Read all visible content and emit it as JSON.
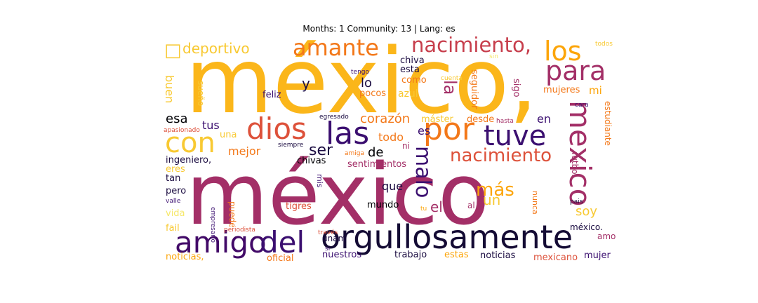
{
  "chart_data": {
    "type": "wordcloud",
    "title": "Months: 1 Community: 13 | Lang: es",
    "colormap": [
      "#000004",
      "#3b0f70",
      "#8c2981",
      "#a32f67",
      "#dd513a",
      "#f37819",
      "#fca50a",
      "#f8c932",
      "#f6e86a"
    ],
    "words": [
      {
        "text": "méxico,",
        "color": "#fbb61a"
      },
      {
        "text": "méxico",
        "color": "#a32f67"
      },
      {
        "text": "orgullosamente",
        "color": "#140b34"
      },
      {
        "text": "amigo",
        "color": "#420a68"
      },
      {
        "text": "del",
        "color": "#3b0f70"
      },
      {
        "text": "por",
        "color": "#f37819"
      },
      {
        "text": "tuve",
        "color": "#3b0f70"
      },
      {
        "text": "las",
        "color": "#3b0f70"
      },
      {
        "text": "dios",
        "color": "#dd513a"
      },
      {
        "text": "con",
        "color": "#f8c932"
      },
      {
        "text": "para",
        "color": "#a32f67"
      },
      {
        "text": "los",
        "color": "#fca50a"
      },
      {
        "text": "amante",
        "color": "#f37819"
      },
      {
        "text": "nacimiento,",
        "color": "#c73e4c"
      },
      {
        "text": "nacimiento",
        "color": "#dd513a"
      },
      {
        "text": "mexico",
        "color": "#a32f67"
      },
      {
        "text": "malo",
        "color": "#3b0f70"
      },
      {
        "text": "deportivo",
        "color": "#f8c932"
      },
      {
        "text": "más",
        "color": "#fca50a"
      },
      {
        "text": "un",
        "color": "#f8c932"
      },
      {
        "text": "el",
        "color": "#a32f67"
      },
      {
        "text": "corazón",
        "color": "#f37819"
      },
      {
        "text": "ser",
        "color": "#1b0c41"
      },
      {
        "text": "de",
        "color": "#000004"
      },
      {
        "text": "lo",
        "color": "#1b0c41"
      },
      {
        "text": "y",
        "color": "#1b0c41"
      },
      {
        "text": "mejor",
        "color": "#f37819"
      },
      {
        "text": "todo",
        "color": "#f37819"
      },
      {
        "text": "tus",
        "color": "#3b0f70"
      },
      {
        "text": "esa",
        "color": "#000004"
      },
      {
        "text": "que",
        "color": "#1b0c41"
      },
      {
        "text": "es",
        "color": "#3b0f70"
      },
      {
        "text": "en",
        "color": "#3b0f70"
      },
      {
        "text": "la",
        "color": "#a32f67"
      },
      {
        "text": "soy",
        "color": "#f8c932"
      },
      {
        "text": "buen",
        "color": "#f8c932"
      },
      {
        "text": "sueño",
        "color": "#f8c932"
      },
      {
        "text": "chiva",
        "color": "#1b0c41"
      },
      {
        "text": "esta",
        "color": "#1b0c41"
      },
      {
        "text": "como",
        "color": "#f37819"
      },
      {
        "text": "pocos",
        "color": "#f37819"
      },
      {
        "text": "azul",
        "color": "#f8c932"
      },
      {
        "text": "feliz",
        "color": "#3b0f70"
      },
      {
        "text": "seguidor",
        "color": "#f37819"
      },
      {
        "text": "sigo",
        "color": "#a32f67"
      },
      {
        "text": "mujeres",
        "color": "#f37819"
      },
      {
        "text": "mi",
        "color": "#fca50a"
      },
      {
        "text": "estudiante",
        "color": "#f37819"
      },
      {
        "text": "futbol,",
        "color": "#a32f67"
      },
      {
        "text": "máster",
        "color": "#f8c932"
      },
      {
        "text": "desde",
        "color": "#f37819"
      },
      {
        "text": "una",
        "color": "#f8c932"
      },
      {
        "text": "ingeniero,",
        "color": "#1b0c41"
      },
      {
        "text": "eres",
        "color": "#f8c932"
      },
      {
        "text": "tan",
        "color": "#1b0c41"
      },
      {
        "text": "pero",
        "color": "#1b0c41"
      },
      {
        "text": "vida",
        "color": "#f6e86a"
      },
      {
        "text": "fail",
        "color": "#f8c932"
      },
      {
        "text": "chivas",
        "color": "#000004"
      },
      {
        "text": "sentimientos",
        "color": "#a32f67"
      },
      {
        "text": "tigres",
        "color": "#dd513a"
      },
      {
        "text": "mundo",
        "color": "#000004"
      },
      {
        "text": "puede",
        "color": "#f37819"
      },
      {
        "text": "unam",
        "color": "#1b0c41"
      },
      {
        "text": "nuestros",
        "color": "#3b0f70"
      },
      {
        "text": "trabajo",
        "color": "#1b0c41"
      },
      {
        "text": "estas",
        "color": "#fca50a"
      },
      {
        "text": "noticias",
        "color": "#1b0c41"
      },
      {
        "text": "noticias,",
        "color": "#fca50a"
      },
      {
        "text": "oficial",
        "color": "#f37819"
      },
      {
        "text": "mexicano",
        "color": "#dd513a"
      },
      {
        "text": "mujer",
        "color": "#3b0f70"
      },
      {
        "text": "méxico.",
        "color": "#1b0c41"
      },
      {
        "text": "amo",
        "color": "#a32f67"
      },
      {
        "text": "nunca",
        "color": "#f37819"
      },
      {
        "text": "al",
        "color": "#a32f67"
      },
      {
        "text": "mis",
        "color": "#3b0f70"
      },
      {
        "text": "ni",
        "color": "#a32f67"
      },
      {
        "text": "tengo",
        "color": "#3b0f70"
      },
      {
        "text": "si",
        "color": "#3b0f70"
      },
      {
        "text": "egresado",
        "color": "#1b0c41"
      },
      {
        "text": "apasionado",
        "color": "#dd513a"
      },
      {
        "text": "siempre",
        "color": "#1b0c41"
      },
      {
        "text": "amiga",
        "color": "#f37819"
      },
      {
        "text": "valle",
        "color": "#3b0f70"
      },
      {
        "text": "empresario",
        "color": "#3b0f70"
      },
      {
        "text": "periodista",
        "color": "#dd513a"
      },
      {
        "text": "través",
        "color": "#dd513a"
      },
      {
        "text": "pais",
        "color": "#1b0c41"
      },
      {
        "text": "cara",
        "color": "#3b0f70"
      },
      {
        "text": "hasta",
        "color": "#a32f67"
      },
      {
        "text": "cuenta",
        "color": "#f8c932"
      },
      {
        "text": "todos",
        "color": "#f8c932"
      },
      {
        "text": "sin",
        "color": "#f6e86a"
      },
      {
        "text": "tu",
        "color": "#fca50a"
      },
      {
        "text": "□",
        "color": "#f8c932"
      }
    ]
  }
}
